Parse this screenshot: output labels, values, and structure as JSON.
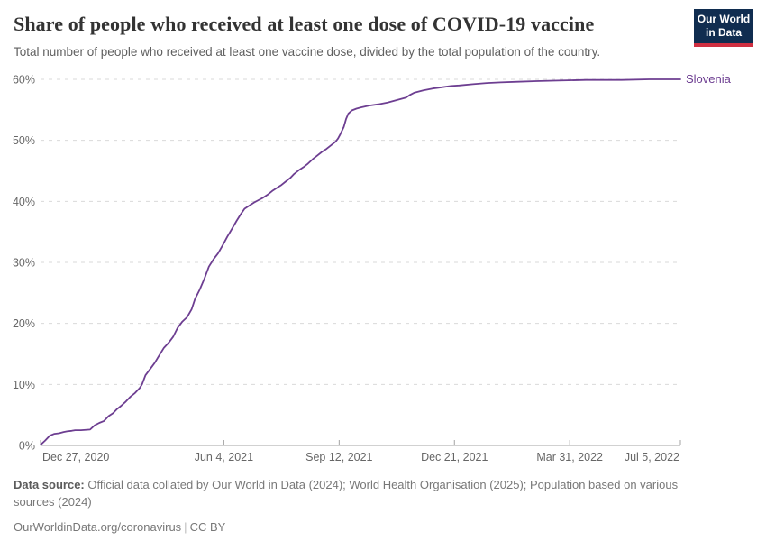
{
  "header": {
    "title": "Share of people who received at least one dose of COVID-19 vaccine",
    "subtitle": "Total number of people who received at least one vaccine dose, divided by the total population of the country."
  },
  "logo": {
    "line1": "Our World",
    "line2": "in Data",
    "bg_color": "#102d50",
    "accent_color": "#cf2f41"
  },
  "footer": {
    "source_label": "Data source:",
    "source_text": "Official data collated by Our World in Data (2024); World Health Organisation (2025); Population based on various sources (2024)",
    "credit_url": "OurWorldinData.org/coronavirus",
    "credit_sep": "|",
    "credit_license": "CC BY"
  },
  "chart_data": {
    "type": "line",
    "title": "Share of people who received at least one dose of COVID-19 vaccine",
    "xlabel": "",
    "ylabel": "",
    "x_range_days": [
      0,
      555
    ],
    "x_start_date": "Dec 27, 2020",
    "x_end_date": "Jul 5, 2022",
    "ylim": [
      0,
      60
    ],
    "y_tick_unit": "%",
    "grid": "dashed-horizontal",
    "legend_position": "end-of-line-label",
    "y_ticks": [
      {
        "value": 0,
        "label": "0%"
      },
      {
        "value": 10,
        "label": "10%"
      },
      {
        "value": 20,
        "label": "20%"
      },
      {
        "value": 30,
        "label": "30%"
      },
      {
        "value": 40,
        "label": "40%"
      },
      {
        "value": 50,
        "label": "50%"
      },
      {
        "value": 60,
        "label": "60%"
      }
    ],
    "x_ticks": [
      {
        "day": 0,
        "label": "Dec 27, 2020",
        "align": "start"
      },
      {
        "day": 159,
        "label": "Jun 4, 2021",
        "align": "middle"
      },
      {
        "day": 259,
        "label": "Sep 12, 2021",
        "align": "middle"
      },
      {
        "day": 359,
        "label": "Dec 21, 2021",
        "align": "middle"
      },
      {
        "day": 459,
        "label": "Mar 31, 2022",
        "align": "middle"
      },
      {
        "day": 555,
        "label": "Jul 5, 2022",
        "align": "end"
      }
    ],
    "series": [
      {
        "name": "Slovenia",
        "color": "#6d3e91",
        "points_format": [
          "days_since_2020-12-27",
          "percent_at_least_one_dose"
        ],
        "points": [
          [
            0,
            0.1
          ],
          [
            4,
            0.8
          ],
          [
            8,
            1.6
          ],
          [
            12,
            1.9
          ],
          [
            16,
            2.0
          ],
          [
            20,
            2.2
          ],
          [
            23,
            2.3
          ],
          [
            27,
            2.4
          ],
          [
            30,
            2.5
          ],
          [
            35,
            2.5
          ],
          [
            43,
            2.6
          ],
          [
            47,
            3.3
          ],
          [
            51,
            3.7
          ],
          [
            55,
            4.0
          ],
          [
            59,
            4.8
          ],
          [
            63,
            5.3
          ],
          [
            66,
            5.9
          ],
          [
            70,
            6.5
          ],
          [
            74,
            7.2
          ],
          [
            78,
            8.0
          ],
          [
            82,
            8.6
          ],
          [
            86,
            9.4
          ],
          [
            88,
            10.0
          ],
          [
            91,
            11.5
          ],
          [
            95,
            12.5
          ],
          [
            99,
            13.5
          ],
          [
            103,
            14.8
          ],
          [
            107,
            16.0
          ],
          [
            111,
            16.8
          ],
          [
            115,
            17.8
          ],
          [
            119,
            19.3
          ],
          [
            123,
            20.3
          ],
          [
            127,
            21.0
          ],
          [
            131,
            22.3
          ],
          [
            134,
            24.0
          ],
          [
            138,
            25.5
          ],
          [
            142,
            27.3
          ],
          [
            146,
            29.3
          ],
          [
            150,
            30.5
          ],
          [
            154,
            31.5
          ],
          [
            158,
            32.8
          ],
          [
            162,
            34.2
          ],
          [
            166,
            35.5
          ],
          [
            170,
            36.8
          ],
          [
            174,
            38.0
          ],
          [
            177,
            38.8
          ],
          [
            181,
            39.3
          ],
          [
            185,
            39.8
          ],
          [
            189,
            40.2
          ],
          [
            193,
            40.6
          ],
          [
            197,
            41.1
          ],
          [
            201,
            41.7
          ],
          [
            205,
            42.2
          ],
          [
            209,
            42.7
          ],
          [
            213,
            43.3
          ],
          [
            217,
            43.9
          ],
          [
            220,
            44.5
          ],
          [
            224,
            45.1
          ],
          [
            228,
            45.6
          ],
          [
            232,
            46.2
          ],
          [
            236,
            46.9
          ],
          [
            240,
            47.5
          ],
          [
            244,
            48.1
          ],
          [
            248,
            48.6
          ],
          [
            252,
            49.2
          ],
          [
            256,
            49.8
          ],
          [
            258,
            50.3
          ],
          [
            260,
            51.0
          ],
          [
            263,
            52.2
          ],
          [
            265,
            53.5
          ],
          [
            267,
            54.4
          ],
          [
            270,
            54.9
          ],
          [
            274,
            55.2
          ],
          [
            278,
            55.4
          ],
          [
            285,
            55.7
          ],
          [
            293,
            55.9
          ],
          [
            301,
            56.2
          ],
          [
            309,
            56.6
          ],
          [
            317,
            57.0
          ],
          [
            320,
            57.4
          ],
          [
            324,
            57.8
          ],
          [
            332,
            58.2
          ],
          [
            340,
            58.5
          ],
          [
            348,
            58.7
          ],
          [
            356,
            58.9
          ],
          [
            363,
            59.0
          ],
          [
            375,
            59.2
          ],
          [
            387,
            59.4
          ],
          [
            399,
            59.5
          ],
          [
            414,
            59.6
          ],
          [
            430,
            59.7
          ],
          [
            449,
            59.8
          ],
          [
            473,
            59.9
          ],
          [
            504,
            59.9
          ],
          [
            528,
            60.0
          ],
          [
            555,
            60.0
          ]
        ]
      }
    ],
    "colors": {
      "gridline": "#d9d9d9",
      "axis": "#a3a3a3",
      "tick_label": "#666666"
    }
  }
}
